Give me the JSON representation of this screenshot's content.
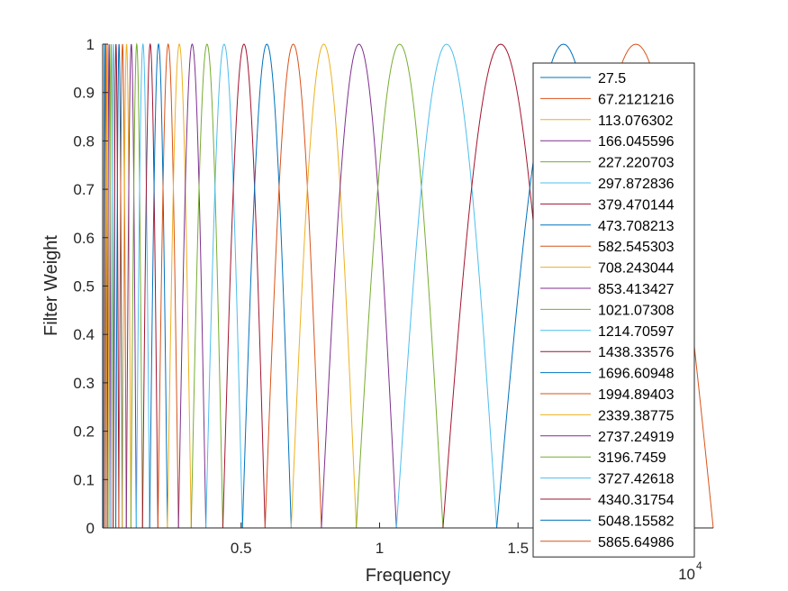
{
  "chart_data": {
    "type": "line",
    "title": "",
    "xlabel": "Frequency",
    "ylabel": "Filter Weight",
    "x_exponent_label": "10",
    "x_exponent": "4",
    "xlim": [
      0,
      22050
    ],
    "ylim": [
      0,
      1
    ],
    "x_tick_values": [
      5000,
      10000,
      15000
    ],
    "x_tick_labels": [
      "0.5",
      "1",
      "1.5"
    ],
    "y_tick_values": [
      0,
      0.1,
      0.2,
      0.3,
      0.4,
      0.5,
      0.6,
      0.7,
      0.8,
      0.9,
      1
    ],
    "y_tick_labels": [
      "0",
      "0.1",
      "0.2",
      "0.3",
      "0.4",
      "0.5",
      "0.6",
      "0.7",
      "0.8",
      "0.9",
      "1"
    ],
    "grid": false,
    "legend_placement": "right",
    "filter_shape": "half-sine window between adjacent center frequencies",
    "center_frequencies": [
      27.5,
      67.2121216,
      113.076302,
      166.045596,
      227.220703,
      297.872836,
      379.470144,
      473.708213,
      582.545303,
      708.243044,
      853.413427,
      1021.07308,
      1214.70597,
      1438.33576,
      1696.60948,
      1994.89403,
      2339.38775,
      2737.24919,
      3196.7459,
      3727.42618,
      4340.31754,
      5048.15582,
      5865.64986,
      6809.75,
      7900.0,
      9160.0,
      10610.0,
      12290.0,
      14230.0,
      16460.0,
      19050.0,
      22050.0
    ],
    "series": [
      {
        "name": "27.5"
      },
      {
        "name": "67.2121216"
      },
      {
        "name": "113.076302"
      },
      {
        "name": "166.045596"
      },
      {
        "name": "227.220703"
      },
      {
        "name": "297.872836"
      },
      {
        "name": "379.470144"
      },
      {
        "name": "473.708213"
      },
      {
        "name": "582.545303"
      },
      {
        "name": "708.243044"
      },
      {
        "name": "853.413427"
      },
      {
        "name": "1021.07308"
      },
      {
        "name": "1214.70597"
      },
      {
        "name": "1438.33576"
      },
      {
        "name": "1696.60948"
      },
      {
        "name": "1994.89403"
      },
      {
        "name": "2339.38775"
      },
      {
        "name": "2737.24919"
      },
      {
        "name": "3196.7459"
      },
      {
        "name": "3727.42618"
      },
      {
        "name": "4340.31754"
      },
      {
        "name": "5048.15582"
      },
      {
        "name": "5865.64986"
      }
    ],
    "colors": [
      "#0072BD",
      "#D95319",
      "#EDB120",
      "#7E2F8E",
      "#77AC30",
      "#4DBEEE",
      "#A2142F"
    ]
  }
}
